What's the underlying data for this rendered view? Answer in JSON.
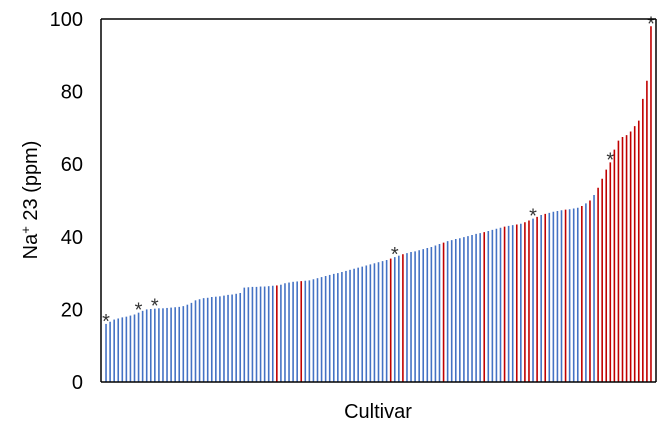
{
  "chart_data": {
    "type": "bar",
    "xlabel": "Cultivar",
    "ylabel_main": "Na",
    "ylabel_sup": "+",
    "ylabel_rest": " 23 (ppm)",
    "ylim": [
      0,
      100
    ],
    "yticks": [
      0,
      20,
      40,
      60,
      80,
      100
    ],
    "grid": false,
    "colors": {
      "blue": "#4472c4",
      "red": "#c00000"
    },
    "annotation_symbol": "*",
    "values": [
      16.0,
      16.6,
      17.2,
      17.5,
      17.8,
      18.0,
      18.3,
      18.6,
      19.1,
      19.6,
      20.0,
      20.1,
      20.2,
      20.3,
      20.3,
      20.4,
      20.5,
      20.6,
      20.7,
      20.9,
      21.3,
      21.8,
      22.5,
      22.8,
      23.1,
      23.2,
      23.4,
      23.5,
      23.6,
      23.8,
      24.0,
      24.1,
      24.3,
      24.5,
      26.0,
      26.1,
      26.2,
      26.2,
      26.3,
      26.3,
      26.4,
      26.5,
      26.6,
      26.8,
      27.2,
      27.4,
      27.6,
      27.7,
      27.8,
      27.9,
      28.0,
      28.3,
      28.6,
      28.9,
      29.2,
      29.5,
      29.8,
      30.0,
      30.3,
      30.6,
      30.9,
      31.2,
      31.5,
      31.8,
      32.1,
      32.4,
      32.7,
      33.0,
      33.3,
      33.6,
      34.0,
      34.4,
      34.8,
      35.2,
      35.5,
      35.8,
      36.0,
      36.3,
      36.6,
      36.9,
      37.2,
      37.6,
      38.0,
      38.4,
      38.8,
      39.1,
      39.4,
      39.6,
      39.9,
      40.2,
      40.5,
      40.8,
      41.0,
      41.3,
      41.6,
      41.9,
      42.2,
      42.5,
      42.8,
      43.0,
      43.2,
      43.4,
      43.6,
      44.0,
      44.5,
      45.0,
      45.5,
      46.0,
      46.3,
      46.6,
      46.9,
      47.1,
      47.3,
      47.5,
      47.6,
      47.8,
      48.0,
      48.5,
      49.2,
      50.0,
      51.5,
      53.5,
      56.0,
      58.5,
      60.5,
      64.0,
      66.5,
      67.5,
      68.0,
      69.0,
      70.5,
      72.0,
      78.0,
      83.0,
      98.0
    ],
    "red_indices": [
      42,
      48,
      70,
      73,
      83,
      93,
      98,
      101,
      103,
      104,
      106,
      108,
      113,
      117,
      119,
      121,
      122,
      123,
      124,
      125,
      126,
      127,
      128,
      129,
      130,
      131,
      132,
      133,
      134,
      135
    ],
    "starred_indices": [
      0,
      8,
      12,
      71,
      105,
      124,
      134
    ]
  }
}
